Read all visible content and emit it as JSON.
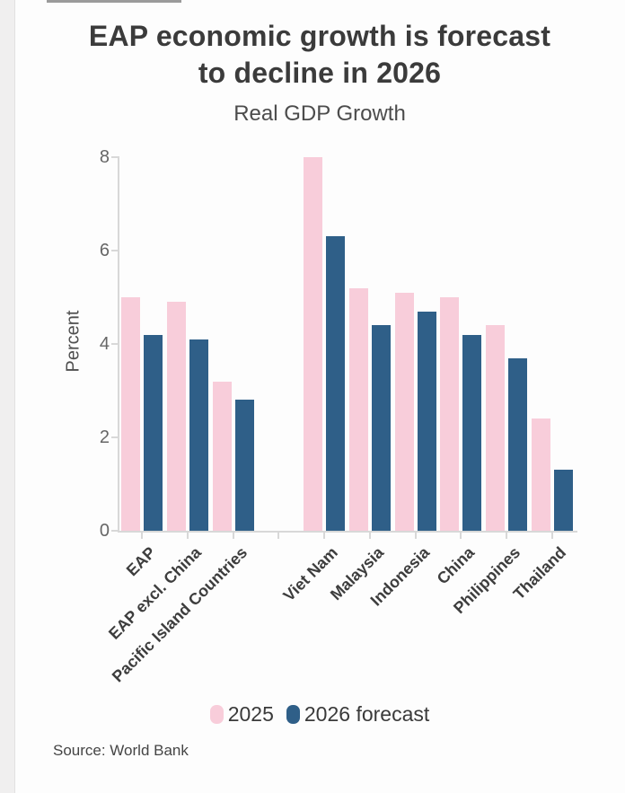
{
  "header": {
    "title_lines": [
      "EAP economic growth is forecast",
      "to decline in 2026"
    ],
    "subtitle": "Real GDP Growth"
  },
  "footer": {
    "source": "Source: World Bank"
  },
  "chart_data": {
    "type": "bar",
    "title": "EAP economic growth is forecast to decline in 2026",
    "subtitle": "Real GDP Growth",
    "xlabel": "",
    "ylabel": "Percent",
    "ylim": [
      0,
      8
    ],
    "yticks": [
      0,
      2,
      4,
      6,
      8
    ],
    "grid": false,
    "legend_position": "bottom",
    "categories": [
      "EAP",
      "EAP excl. China",
      "Pacific Island Countries",
      "Viet Nam",
      "Malaysia",
      "Indonesia",
      "China",
      "Philippines",
      "Thailand"
    ],
    "group_gap_after": "Pacific Island Countries",
    "series": [
      {
        "name": "2025",
        "color": "#f8cdda",
        "values": [
          5.0,
          4.9,
          3.2,
          8.0,
          5.2,
          5.1,
          5.0,
          4.4,
          2.4
        ]
      },
      {
        "name": "2026 forecast",
        "color": "#2f5f88",
        "values": [
          4.2,
          4.1,
          2.8,
          6.3,
          4.4,
          4.7,
          4.2,
          3.7,
          1.3
        ]
      }
    ],
    "axis_color": "#d8d8d8",
    "tick_label_color": "#666666",
    "category_label_color": "#3d3d3d"
  }
}
